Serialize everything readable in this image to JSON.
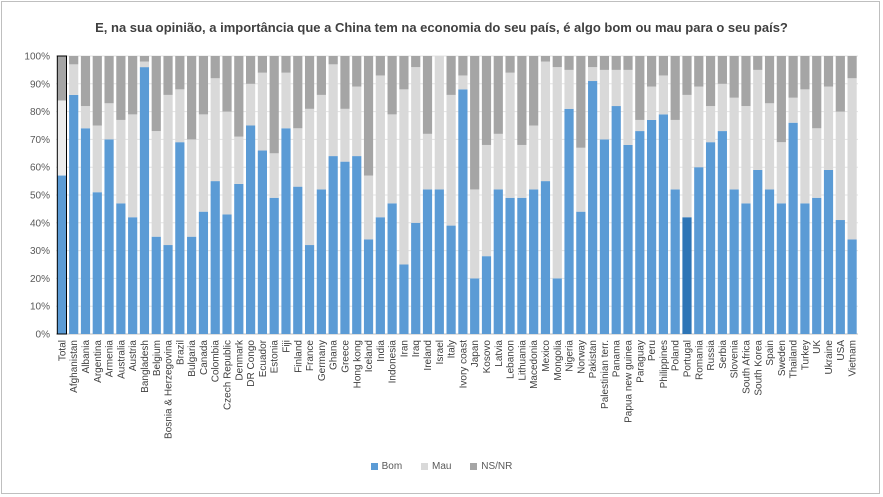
{
  "chart_data": {
    "type": "bar",
    "stacked": true,
    "title": "E, na sua opinião, a importância que a China tem na economia do seu país, é algo bom ou mau para o seu país?",
    "xlabel": "",
    "ylabel": "",
    "ylim": [
      0,
      100
    ],
    "y_ticks": [
      "0%",
      "10%",
      "20%",
      "30%",
      "40%",
      "50%",
      "60%",
      "70%",
      "80%",
      "90%",
      "100%"
    ],
    "grid": true,
    "legend_position": "bottom",
    "categories": [
      "Total",
      "Afghanistan",
      "Albania",
      "Argentina",
      "Armenia",
      "Australia",
      "Austria",
      "Bangladesh",
      "Belgium",
      "Bosnia & Herzegovina",
      "Brazil",
      "Bulgaria",
      "Canada",
      "Colombia",
      "Czech Republic",
      "Denmark",
      "DR Congo",
      "Ecuador",
      "Estonia",
      "Fiji",
      "Finland",
      "France",
      "Germany",
      "Ghana",
      "Greece",
      "Hong kong",
      "Iceland",
      "India",
      "Indonesia",
      "Iran",
      "Iraq",
      "Ireland",
      "Israel",
      "Italy",
      "Ivory coast",
      "Japan",
      "Kosovo",
      "Latvia",
      "Lebanon",
      "Lithuania",
      "Macedonia",
      "Mexico",
      "Mongolia",
      "Nigeria",
      "Norway",
      "Pakistan",
      "Palestinian terr.",
      "Panama",
      "Papua new guinea",
      "Paraguay",
      "Peru",
      "Philippines",
      "Poland",
      "Portugal",
      "Romania",
      "Russia",
      "Serbia",
      "Slovenia",
      "South Africa",
      "South Korea",
      "Spain",
      "Sweden",
      "Thailand",
      "Turkey",
      "UK",
      "Ukraine",
      "USA",
      "Vietnam"
    ],
    "series": [
      {
        "name": "Bom",
        "color": "#5b9bd5",
        "values": [
          57,
          86,
          74,
          51,
          70,
          47,
          42,
          96,
          35,
          32,
          69,
          35,
          44,
          55,
          43,
          54,
          75,
          66,
          49,
          74,
          53,
          32,
          52,
          64,
          62,
          64,
          34,
          42,
          47,
          25,
          40,
          52,
          52,
          39,
          88,
          20,
          28,
          52,
          49,
          49,
          52,
          55,
          20,
          81,
          44,
          91,
          70,
          82,
          68,
          73,
          77,
          79,
          52,
          42,
          60,
          69,
          73,
          52,
          47,
          59,
          52,
          47,
          76,
          47,
          49,
          59,
          41,
          34
        ]
      },
      {
        "name": "Mau",
        "color": "#d9d9d9",
        "values": [
          27,
          11,
          8,
          24,
          13,
          30,
          37,
          2,
          38,
          54,
          19,
          35,
          35,
          37,
          37,
          17,
          15,
          28,
          16,
          20,
          21,
          49,
          34,
          33,
          19,
          25,
          23,
          51,
          32,
          63,
          56,
          20,
          48,
          47,
          5,
          32,
          40,
          20,
          45,
          19,
          23,
          43,
          76,
          14,
          23,
          5,
          25,
          13,
          27,
          4,
          12,
          14,
          25,
          44,
          29,
          13,
          17,
          33,
          35,
          36,
          31,
          22,
          9,
          41,
          25,
          30,
          39,
          58
        ]
      },
      {
        "name": "NS/NR",
        "color": "#a5a5a5",
        "values": [
          16,
          3,
          18,
          25,
          17,
          23,
          21,
          2,
          27,
          14,
          12,
          30,
          21,
          8,
          20,
          29,
          10,
          6,
          35,
          6,
          26,
          19,
          14,
          3,
          19,
          11,
          43,
          7,
          21,
          12,
          4,
          28,
          0,
          14,
          7,
          48,
          32,
          28,
          6,
          32,
          25,
          2,
          4,
          5,
          33,
          4,
          5,
          5,
          5,
          23,
          11,
          7,
          23,
          14,
          11,
          18,
          10,
          15,
          18,
          5,
          17,
          31,
          15,
          12,
          26,
          11,
          20,
          8
        ]
      }
    ]
  }
}
